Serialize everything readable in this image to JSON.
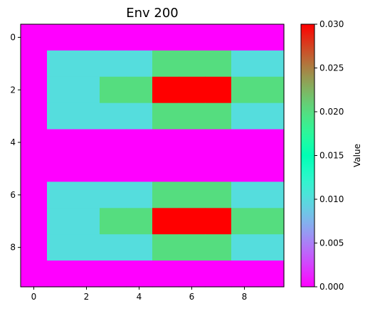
{
  "chart_data": {
    "type": "heatmap",
    "title": "Env 200",
    "colorbar_label": "Value",
    "colormap": "rainbow",
    "vmin": 0.0,
    "vmax": 0.03,
    "rows": 10,
    "cols": 10,
    "x_ticks": [
      "0",
      "2",
      "4",
      "6",
      "8"
    ],
    "y_ticks": [
      "0",
      "2",
      "4",
      "6",
      "8"
    ],
    "x_tick_values": [
      0,
      2,
      4,
      6,
      8
    ],
    "y_tick_values": [
      0,
      2,
      4,
      6,
      8
    ],
    "colorbar_ticks": [
      "0.000",
      "0.005",
      "0.010",
      "0.015",
      "0.020",
      "0.025",
      "0.030"
    ],
    "colorbar_tick_values": [
      0.0,
      0.005,
      0.01,
      0.015,
      0.02,
      0.025,
      0.03
    ],
    "values": [
      [
        0,
        0,
        0,
        0,
        0,
        0,
        0,
        0,
        0,
        0
      ],
      [
        0,
        0.01,
        0.01,
        0.01,
        0.01,
        0.02,
        0.02,
        0.02,
        0.01,
        0.01
      ],
      [
        0,
        0.01,
        0.01,
        0.02,
        0.02,
        0.03,
        0.03,
        0.03,
        0.02,
        0.02
      ],
      [
        0,
        0.01,
        0.01,
        0.01,
        0.01,
        0.02,
        0.02,
        0.02,
        0.01,
        0.01
      ],
      [
        0,
        0,
        0,
        0,
        0,
        0,
        0,
        0,
        0,
        0
      ],
      [
        0,
        0,
        0,
        0,
        0,
        0,
        0,
        0,
        0,
        0
      ],
      [
        0,
        0.01,
        0.01,
        0.01,
        0.01,
        0.02,
        0.02,
        0.02,
        0.01,
        0.01
      ],
      [
        0,
        0.01,
        0.01,
        0.02,
        0.02,
        0.03,
        0.03,
        0.03,
        0.02,
        0.02
      ],
      [
        0,
        0.01,
        0.01,
        0.01,
        0.01,
        0.02,
        0.02,
        0.02,
        0.01,
        0.01
      ],
      [
        0,
        0,
        0,
        0,
        0,
        0,
        0,
        0,
        0,
        0
      ]
    ]
  }
}
